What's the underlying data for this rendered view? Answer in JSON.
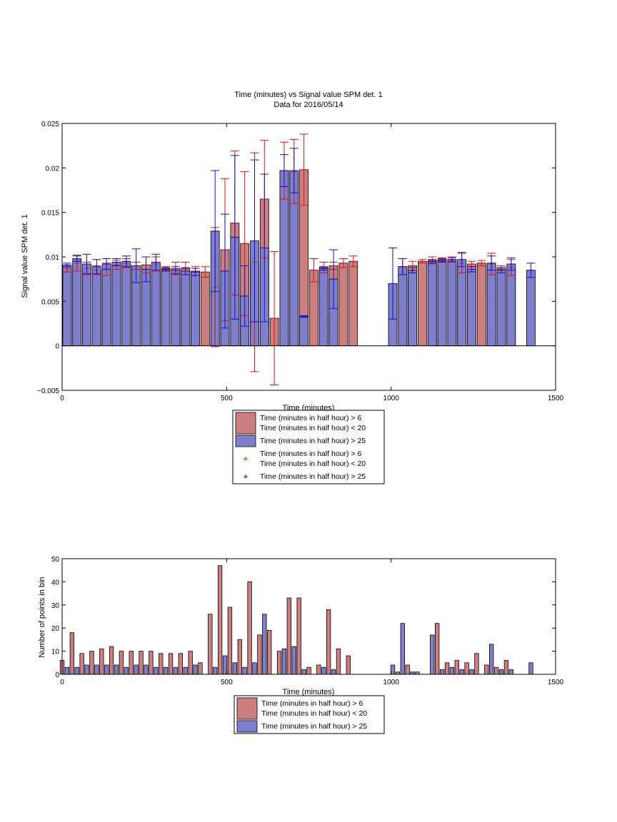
{
  "figure": {
    "title_line1": "Time (minutes) vs Signal value SPM det. 1",
    "title_line2": "Data for 2016/05/14"
  },
  "colors": {
    "red_fill": "#cd7f7f",
    "blue_fill": "#7f7fcd",
    "red_err": "#e01010",
    "blue_err": "#1010c8"
  },
  "chart_data": [
    {
      "type": "bar",
      "xlabel": "Time (minutes)",
      "ylabel": "Signal value SPM det. 1",
      "xlim": [
        0,
        1500
      ],
      "ylim": [
        -0.005,
        0.025
      ],
      "xticks": [
        0,
        500,
        1000,
        1500
      ],
      "xtick_labels": [
        "0",
        "500",
        "1000",
        "1500"
      ],
      "yticks": [
        -0.005,
        0,
        0.005,
        0.01,
        0.015,
        0.02,
        0.025
      ],
      "ytick_labels": [
        "−0.005",
        "0",
        "0.005",
        "0.01",
        "0.015",
        "0.02",
        "0.025"
      ],
      "grid": false,
      "legend_position": "below",
      "legend": [
        {
          "label_line1": "Time (minutes in half hour) > 6",
          "label_line2": "Time (minutes in half hour) < 20",
          "kind": "bar",
          "color": "red"
        },
        {
          "label_line1": "Time (minutes in half hour) > 25",
          "kind": "bar",
          "color": "blue"
        },
        {
          "label_line1": "Time (minutes in half hour) > 6",
          "label_line2": "Time (minutes in half hour) < 20",
          "kind": "errorbar",
          "color": "red"
        },
        {
          "label_line1": "Time (minutes in half hour) > 25",
          "kind": "errorbar",
          "color": "blue"
        }
      ],
      "series": [
        {
          "color": "red",
          "points": [
            {
              "x": 15,
              "y": 0.0087,
              "err": 0.0004
            },
            {
              "x": 45,
              "y": 0.0093,
              "err": 0.0009
            },
            {
              "x": 75,
              "y": 0.0087,
              "err": 0.0007
            },
            {
              "x": 105,
              "y": 0.0085,
              "err": 0.0005
            },
            {
              "x": 135,
              "y": 0.0086,
              "err": 0.0007
            },
            {
              "x": 165,
              "y": 0.0091,
              "err": 0.0005
            },
            {
              "x": 195,
              "y": 0.0093,
              "err": 0.0005
            },
            {
              "x": 225,
              "y": 0.009,
              "err": 0.0004
            },
            {
              "x": 255,
              "y": 0.0091,
              "err": 0.0009
            },
            {
              "x": 285,
              "y": 0.0092,
              "err": 0.0008
            },
            {
              "x": 315,
              "y": 0.0087,
              "err": 0.0002
            },
            {
              "x": 345,
              "y": 0.0087,
              "err": 0.0007
            },
            {
              "x": 375,
              "y": 0.0087,
              "err": 0.0007
            },
            {
              "x": 405,
              "y": 0.0084,
              "err": 0.0005
            },
            {
              "x": 435,
              "y": 0.0083,
              "err": 0.0006
            },
            {
              "x": 465,
              "y": 0.0066,
              "err": 0.0067
            },
            {
              "x": 495,
              "y": 0.0108,
              "err": 0.008
            },
            {
              "x": 525,
              "y": 0.0138,
              "err": 0.0081
            },
            {
              "x": 555,
              "y": 0.0115,
              "err": 0.0081
            },
            {
              "x": 585,
              "y": 0.0094,
              "err": 0.0123
            },
            {
              "x": 615,
              "y": 0.0165,
              "err": 0.0066
            },
            {
              "x": 645,
              "y": 0.0031,
              "err": 0.0075
            },
            {
              "x": 675,
              "y": 0.0197,
              "err": 0.0032
            },
            {
              "x": 705,
              "y": 0.0196,
              "err": 0.0036
            },
            {
              "x": 735,
              "y": 0.0198,
              "err": 0.004
            },
            {
              "x": 765,
              "y": 0.0085,
              "err": 0.0013
            },
            {
              "x": 795,
              "y": 0.0088,
              "err": 0.0006
            },
            {
              "x": 825,
              "y": 0.009,
              "err": 0.0004
            },
            {
              "x": 855,
              "y": 0.0093,
              "err": 0.0005
            },
            {
              "x": 885,
              "y": 0.0095,
              "err": 0.0006
            },
            {
              "x": 1035,
              "y": 0.0089,
              "err": 0.0009
            },
            {
              "x": 1065,
              "y": 0.009,
              "err": 0.0005
            },
            {
              "x": 1095,
              "y": 0.0095,
              "err": 0.0002
            },
            {
              "x": 1125,
              "y": 0.0096,
              "err": 0.0004
            },
            {
              "x": 1155,
              "y": 0.0097,
              "err": 0.0002
            },
            {
              "x": 1185,
              "y": 0.0097,
              "err": 0.0003
            },
            {
              "x": 1215,
              "y": 0.0093,
              "err": 0.0011
            },
            {
              "x": 1245,
              "y": 0.0092,
              "err": 0.0003
            },
            {
              "x": 1275,
              "y": 0.0093,
              "err": 0.0003
            },
            {
              "x": 1305,
              "y": 0.0092,
              "err": 0.0012
            },
            {
              "x": 1335,
              "y": 0.0088,
              "err": 0.0002
            },
            {
              "x": 1365,
              "y": 0.0088,
              "err": 0.0009
            }
          ]
        },
        {
          "color": "blue",
          "points": [
            {
              "x": 15,
              "y": 0.0091,
              "err": 0.0002
            },
            {
              "x": 45,
              "y": 0.0098,
              "err": 0.0003
            },
            {
              "x": 75,
              "y": 0.0092,
              "err": 0.0011
            },
            {
              "x": 105,
              "y": 0.0089,
              "err": 0.0008
            },
            {
              "x": 135,
              "y": 0.0092,
              "err": 0.0006
            },
            {
              "x": 165,
              "y": 0.0094,
              "err": 0.0004
            },
            {
              "x": 195,
              "y": 0.0095,
              "err": 0.0006
            },
            {
              "x": 225,
              "y": 0.009,
              "err": 0.0019
            },
            {
              "x": 255,
              "y": 0.0086,
              "err": 0.0014
            },
            {
              "x": 285,
              "y": 0.0094,
              "err": 0.0009
            },
            {
              "x": 315,
              "y": 0.0086,
              "err": 0.0002
            },
            {
              "x": 345,
              "y": 0.0085,
              "err": 0.0004
            },
            {
              "x": 375,
              "y": 0.0084,
              "err": 0.0004
            },
            {
              "x": 405,
              "y": 0.0083,
              "err": 0.0004
            },
            {
              "x": 465,
              "y": 0.0129,
              "err": 0.0068
            },
            {
              "x": 495,
              "y": 0.0084,
              "err": 0.0064
            },
            {
              "x": 525,
              "y": 0.0122,
              "err": 0.0092
            },
            {
              "x": 555,
              "y": 0.0056,
              "err": 0.0034
            },
            {
              "x": 585,
              "y": 0.0118,
              "err": 0.0091
            },
            {
              "x": 615,
              "y": 0.011,
              "err": 0.0083
            },
            {
              "x": 675,
              "y": 0.0197,
              "err": 0.0018
            },
            {
              "x": 705,
              "y": 0.0197,
              "err": 0.0025
            },
            {
              "x": 735,
              "y": 0.0033,
              "err": 0.0001
            },
            {
              "x": 795,
              "y": 0.0087,
              "err": 0.0002
            },
            {
              "x": 825,
              "y": 0.0075,
              "err": 0.0033
            },
            {
              "x": 1005,
              "y": 0.007,
              "err": 0.004
            },
            {
              "x": 1035,
              "y": 0.0089,
              "err": 0.0009
            },
            {
              "x": 1065,
              "y": 0.0085,
              "err": 0.0003
            },
            {
              "x": 1125,
              "y": 0.0095,
              "err": 0.0002
            },
            {
              "x": 1155,
              "y": 0.0096,
              "err": 0.0002
            },
            {
              "x": 1185,
              "y": 0.0097,
              "err": 0.0002
            },
            {
              "x": 1215,
              "y": 0.0097,
              "err": 0.0008
            },
            {
              "x": 1245,
              "y": 0.0086,
              "err": 0.0003
            },
            {
              "x": 1305,
              "y": 0.0093,
              "err": 0.0008
            },
            {
              "x": 1335,
              "y": 0.0085,
              "err": 0.0003
            },
            {
              "x": 1365,
              "y": 0.0092,
              "err": 0.0007
            },
            {
              "x": 1425,
              "y": 0.0085,
              "err": 0.0008
            }
          ]
        }
      ]
    },
    {
      "type": "bar",
      "xlabel": "Time (minutes)",
      "ylabel": "Number of points in bin",
      "xlim": [
        0,
        1500
      ],
      "ylim": [
        0,
        50
      ],
      "xticks": [
        0,
        500,
        1000,
        1500
      ],
      "xtick_labels": [
        "0",
        "500",
        "1000",
        "1500"
      ],
      "yticks": [
        0,
        10,
        20,
        30,
        40,
        50
      ],
      "ytick_labels": [
        "0",
        "10",
        "20",
        "30",
        "40",
        "50"
      ],
      "grid": false,
      "legend_position": "below",
      "legend": [
        {
          "label_line1": "Time (minutes in half hour) > 6",
          "label_line2": "Time (minutes in half hour) < 20",
          "kind": "bar",
          "color": "red"
        },
        {
          "label_line1": "Time (minutes in half hour) > 25",
          "kind": "bar",
          "color": "blue"
        }
      ],
      "series": [
        {
          "color": "red",
          "points": [
            {
              "x": 0,
              "y": 6
            },
            {
              "x": 30,
              "y": 18
            },
            {
              "x": 60,
              "y": 9
            },
            {
              "x": 90,
              "y": 10
            },
            {
              "x": 120,
              "y": 11
            },
            {
              "x": 150,
              "y": 12
            },
            {
              "x": 180,
              "y": 10
            },
            {
              "x": 210,
              "y": 10
            },
            {
              "x": 240,
              "y": 10
            },
            {
              "x": 270,
              "y": 10
            },
            {
              "x": 300,
              "y": 9
            },
            {
              "x": 330,
              "y": 9
            },
            {
              "x": 360,
              "y": 9
            },
            {
              "x": 390,
              "y": 10
            },
            {
              "x": 420,
              "y": 5
            },
            {
              "x": 450,
              "y": 26
            },
            {
              "x": 480,
              "y": 47
            },
            {
              "x": 510,
              "y": 29
            },
            {
              "x": 540,
              "y": 15
            },
            {
              "x": 570,
              "y": 40
            },
            {
              "x": 600,
              "y": 17
            },
            {
              "x": 630,
              "y": 19
            },
            {
              "x": 660,
              "y": 10
            },
            {
              "x": 690,
              "y": 33
            },
            {
              "x": 720,
              "y": 33
            },
            {
              "x": 750,
              "y": 3
            },
            {
              "x": 780,
              "y": 4
            },
            {
              "x": 810,
              "y": 28
            },
            {
              "x": 840,
              "y": 11
            },
            {
              "x": 870,
              "y": 8
            },
            {
              "x": 1020,
              "y": 1
            },
            {
              "x": 1050,
              "y": 4
            },
            {
              "x": 1080,
              "y": 1
            },
            {
              "x": 1140,
              "y": 22
            },
            {
              "x": 1170,
              "y": 5
            },
            {
              "x": 1200,
              "y": 6
            },
            {
              "x": 1230,
              "y": 5
            },
            {
              "x": 1260,
              "y": 9
            },
            {
              "x": 1290,
              "y": 4
            },
            {
              "x": 1320,
              "y": 3
            },
            {
              "x": 1350,
              "y": 6
            }
          ]
        },
        {
          "color": "blue",
          "points": [
            {
              "x": 15,
              "y": 3
            },
            {
              "x": 45,
              "y": 3
            },
            {
              "x": 75,
              "y": 4
            },
            {
              "x": 105,
              "y": 4
            },
            {
              "x": 135,
              "y": 4
            },
            {
              "x": 165,
              "y": 4
            },
            {
              "x": 195,
              "y": 3
            },
            {
              "x": 225,
              "y": 4
            },
            {
              "x": 255,
              "y": 4
            },
            {
              "x": 285,
              "y": 3
            },
            {
              "x": 315,
              "y": 3
            },
            {
              "x": 345,
              "y": 3
            },
            {
              "x": 375,
              "y": 3
            },
            {
              "x": 405,
              "y": 4
            },
            {
              "x": 465,
              "y": 3
            },
            {
              "x": 495,
              "y": 8
            },
            {
              "x": 525,
              "y": 5
            },
            {
              "x": 555,
              "y": 3
            },
            {
              "x": 585,
              "y": 5
            },
            {
              "x": 615,
              "y": 26
            },
            {
              "x": 675,
              "y": 11
            },
            {
              "x": 705,
              "y": 12
            },
            {
              "x": 735,
              "y": 2
            },
            {
              "x": 795,
              "y": 3
            },
            {
              "x": 825,
              "y": 2
            },
            {
              "x": 1005,
              "y": 4
            },
            {
              "x": 1035,
              "y": 22
            },
            {
              "x": 1065,
              "y": 1
            },
            {
              "x": 1125,
              "y": 17
            },
            {
              "x": 1155,
              "y": 2
            },
            {
              "x": 1185,
              "y": 3
            },
            {
              "x": 1215,
              "y": 2
            },
            {
              "x": 1245,
              "y": 2
            },
            {
              "x": 1305,
              "y": 13
            },
            {
              "x": 1335,
              "y": 2
            },
            {
              "x": 1365,
              "y": 2
            },
            {
              "x": 1425,
              "y": 5
            }
          ]
        }
      ]
    }
  ]
}
